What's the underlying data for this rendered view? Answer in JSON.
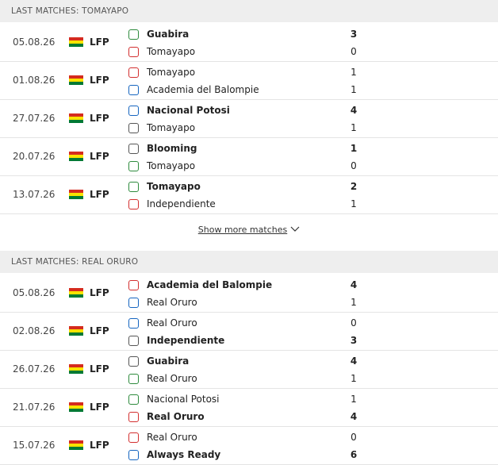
{
  "sections": [
    {
      "header": "LAST MATCHES: TOMAYAPO",
      "matches": [
        {
          "date": "05.08.26",
          "league": "LFP",
          "home": "Guabira",
          "away": "Tomayapo",
          "home_score": 3,
          "away_score": 0,
          "home_bold": true,
          "away_bold": false
        },
        {
          "date": "01.08.26",
          "league": "LFP",
          "home": "Tomayapo",
          "away": "Academia del Balompie",
          "home_score": 1,
          "away_score": 1,
          "home_bold": false,
          "away_bold": false
        },
        {
          "date": "27.07.26",
          "league": "LFP",
          "home": "Nacional Potosi",
          "away": "Tomayapo",
          "home_score": 4,
          "away_score": 1,
          "home_bold": true,
          "away_bold": false
        },
        {
          "date": "20.07.26",
          "league": "LFP",
          "home": "Blooming",
          "away": "Tomayapo",
          "home_score": 1,
          "away_score": 0,
          "home_bold": true,
          "away_bold": false
        },
        {
          "date": "13.07.26",
          "league": "LFP",
          "home": "Tomayapo",
          "away": "Independiente",
          "home_score": 2,
          "away_score": 1,
          "home_bold": true,
          "away_bold": false
        }
      ],
      "show_more": "Show more matches"
    },
    {
      "header": "LAST MATCHES: REAL ORURO",
      "matches": [
        {
          "date": "05.08.26",
          "league": "LFP",
          "home": "Academia del Balompie",
          "away": "Real Oruro",
          "home_score": 4,
          "away_score": 1,
          "home_bold": true,
          "away_bold": false
        },
        {
          "date": "02.08.26",
          "league": "LFP",
          "home": "Real Oruro",
          "away": "Independiente",
          "home_score": 0,
          "away_score": 3,
          "home_bold": false,
          "away_bold": true
        },
        {
          "date": "26.07.26",
          "league": "LFP",
          "home": "Guabira",
          "away": "Real Oruro",
          "home_score": 4,
          "away_score": 1,
          "home_bold": true,
          "away_bold": false
        },
        {
          "date": "21.07.26",
          "league": "LFP",
          "home": "Nacional Potosi",
          "away": "Real Oruro",
          "home_score": 1,
          "away_score": 4,
          "home_bold": false,
          "away_bold": true
        },
        {
          "date": "15.07.26",
          "league": "LFP",
          "home": "Real Oruro",
          "away": "Always Ready",
          "home_score": 0,
          "away_score": 6,
          "home_bold": false,
          "away_bold": true
        }
      ]
    }
  ]
}
